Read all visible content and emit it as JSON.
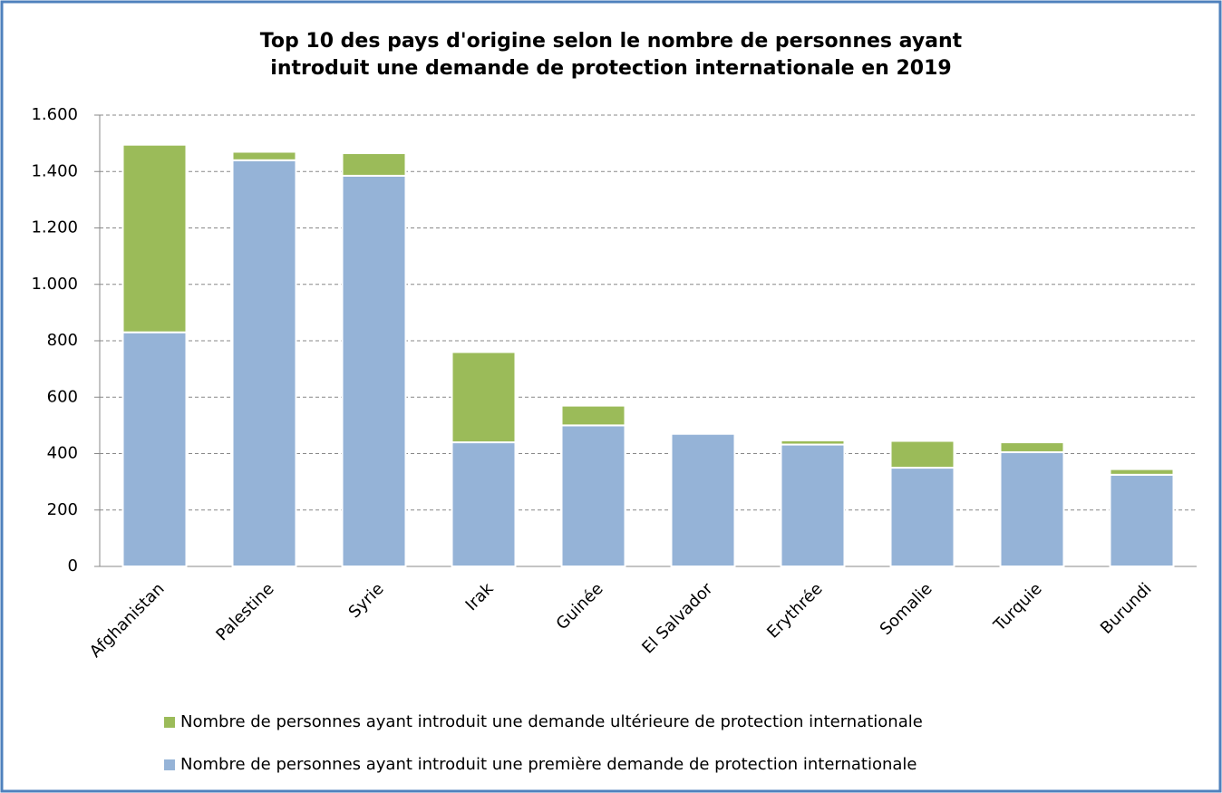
{
  "chart_data": {
    "type": "stacked-bar",
    "title": [
      "Top 10 des pays d'origine selon le nombre de personnes ayant",
      "introduit une demande de protection internationale en 2019"
    ],
    "categories": [
      "Afghanistan",
      "Palestine",
      "Syrie",
      "Irak",
      "Guinée",
      "El Salvador",
      "Erythrée",
      "Somalie",
      "Turquie",
      "Burundi"
    ],
    "series": [
      {
        "name": "Nombre de personnes ayant introduit une première demande de protection internationale",
        "color": "#95b3d7",
        "values": [
          830,
          1440,
          1385,
          440,
          500,
          470,
          432,
          350,
          405,
          325
        ]
      },
      {
        "name": "Nombre de personnes ayant introduit une demande ultérieure de protection internationale",
        "color": "#9bbb59",
        "values": [
          665,
          30,
          80,
          320,
          70,
          0,
          15,
          95,
          35,
          20
        ]
      }
    ],
    "ylim": [
      0,
      1600
    ],
    "yticks": [
      0,
      200,
      400,
      600,
      800,
      {
        "value": 1000,
        "label": "1.000"
      },
      {
        "value": 1200,
        "label": "1.200"
      },
      {
        "value": 1400,
        "label": "1.400"
      },
      {
        "value": 1600,
        "label": "1.600"
      }
    ],
    "grid": true
  }
}
